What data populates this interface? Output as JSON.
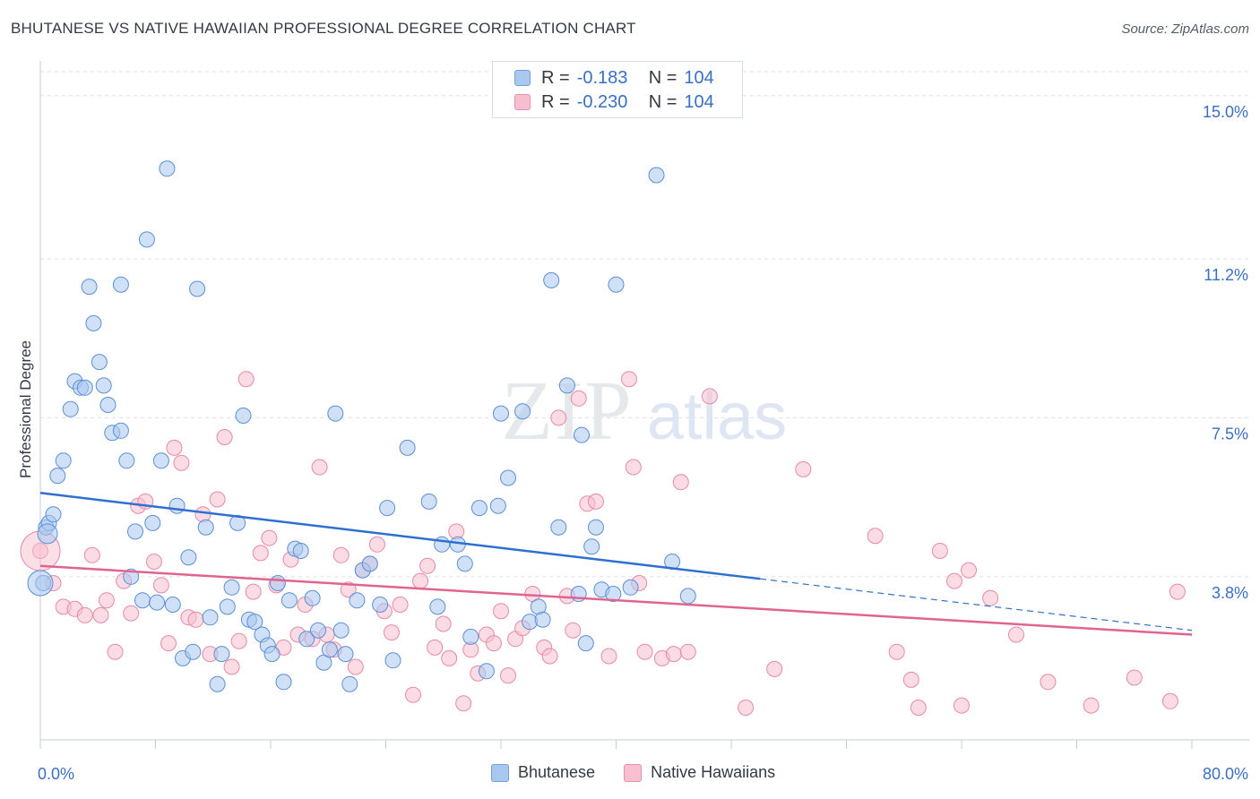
{
  "header": {
    "title": "BHUTANESE VS NATIVE HAWAIIAN PROFESSIONAL DEGREE CORRELATION CHART",
    "source": "Source: ZipAtlas.com"
  },
  "watermark": {
    "zip": "ZIP",
    "atlas": "atlas"
  },
  "legend": {
    "rows": [
      {
        "r_label": "R =",
        "r_value": "-0.183",
        "n_label": "N =",
        "n_value": "104",
        "color": "#a9c8f0",
        "border": "#6f9ed8"
      },
      {
        "r_label": "R =",
        "r_value": "-0.230",
        "n_label": "N =",
        "n_value": "104",
        "color": "#f7bfd0",
        "border": "#e790ad"
      }
    ]
  },
  "bottom_legend": [
    "Bhutanese",
    "Native Hawaiians"
  ],
  "colors": {
    "blue_fill": "#a9c8f0",
    "blue_stroke": "#5b8fd6",
    "blue_line": "#2f6fd0",
    "pink_fill": "#f7bfd0",
    "pink_stroke": "#e68aa8",
    "pink_line": "#e0648f",
    "tick_label": "#3a6fc4",
    "grid": "#dde1e6"
  },
  "chart_data": {
    "type": "scatter",
    "title": "BHUTANESE VS NATIVE HAWAIIAN PROFESSIONAL DEGREE CORRELATION CHART",
    "xlabel": "",
    "ylabel": "Professional Degree",
    "xlim": [
      0,
      80
    ],
    "ylim": [
      0,
      15.6
    ],
    "x_tick_labels": [
      {
        "value": 0,
        "label": "0.0%"
      },
      {
        "value": 80,
        "label": "80.0%"
      }
    ],
    "y_ticks": [
      {
        "value": 3.8,
        "label": "3.8%"
      },
      {
        "value": 7.5,
        "label": "7.5%"
      },
      {
        "value": 11.2,
        "label": "11.2%"
      },
      {
        "value": 15.0,
        "label": "15.0%"
      }
    ],
    "grid": true,
    "legend_position": "top-center",
    "series": [
      {
        "name": "Bhutanese",
        "r": -0.183,
        "n": 104,
        "trend": {
          "x0": 0,
          "y0": 5.75,
          "x1": 50,
          "y1": 3.75,
          "dashed_to_x": 80,
          "dashed_to_y": 2.55
        },
        "points": [
          [
            0.2,
            3.65
          ],
          [
            0.4,
            4.95
          ],
          [
            0.6,
            5.05
          ],
          [
            0.9,
            5.25
          ],
          [
            1.2,
            6.15
          ],
          [
            1.6,
            6.5
          ],
          [
            2.1,
            7.7
          ],
          [
            2.4,
            8.35
          ],
          [
            2.8,
            8.2
          ],
          [
            3.1,
            8.2
          ],
          [
            3.4,
            10.55
          ],
          [
            3.7,
            9.7
          ],
          [
            4.1,
            8.8
          ],
          [
            4.4,
            8.25
          ],
          [
            4.7,
            7.8
          ],
          [
            5.0,
            7.15
          ],
          [
            5.6,
            7.2
          ],
          [
            5.6,
            10.6
          ],
          [
            6.0,
            6.5
          ],
          [
            6.3,
            3.8
          ],
          [
            6.6,
            4.85
          ],
          [
            7.1,
            3.25
          ],
          [
            7.4,
            11.65
          ],
          [
            7.8,
            5.05
          ],
          [
            8.1,
            3.2
          ],
          [
            8.4,
            6.5
          ],
          [
            8.8,
            13.3
          ],
          [
            9.2,
            3.15
          ],
          [
            9.5,
            5.45
          ],
          [
            9.9,
            1.9
          ],
          [
            10.3,
            4.25
          ],
          [
            10.6,
            2.05
          ],
          [
            10.9,
            10.5
          ],
          [
            11.5,
            4.95
          ],
          [
            11.8,
            2.85
          ],
          [
            12.3,
            1.3
          ],
          [
            12.6,
            2.0
          ],
          [
            13.0,
            3.1
          ],
          [
            13.3,
            3.55
          ],
          [
            13.7,
            5.05
          ],
          [
            14.1,
            7.55
          ],
          [
            14.5,
            2.8
          ],
          [
            14.9,
            2.75
          ],
          [
            15.4,
            2.45
          ],
          [
            15.8,
            2.2
          ],
          [
            16.1,
            2.0
          ],
          [
            16.5,
            3.65
          ],
          [
            16.9,
            1.35
          ],
          [
            17.3,
            3.25
          ],
          [
            17.7,
            4.45
          ],
          [
            18.1,
            4.4
          ],
          [
            18.5,
            2.35
          ],
          [
            18.9,
            3.3
          ],
          [
            19.3,
            2.55
          ],
          [
            19.7,
            1.8
          ],
          [
            20.1,
            2.1
          ],
          [
            20.5,
            7.6
          ],
          [
            20.9,
            2.55
          ],
          [
            21.2,
            2.0
          ],
          [
            21.5,
            1.3
          ],
          [
            22.0,
            3.25
          ],
          [
            22.4,
            3.95
          ],
          [
            22.9,
            4.1
          ],
          [
            23.6,
            3.15
          ],
          [
            24.1,
            5.4
          ],
          [
            24.5,
            1.85
          ],
          [
            25.5,
            6.8
          ],
          [
            27.0,
            5.55
          ],
          [
            27.6,
            3.1
          ],
          [
            27.9,
            4.55
          ],
          [
            29.0,
            4.55
          ],
          [
            29.5,
            4.1
          ],
          [
            29.9,
            2.4
          ],
          [
            30.5,
            5.4
          ],
          [
            31.0,
            1.6
          ],
          [
            31.8,
            5.45
          ],
          [
            32.0,
            7.6
          ],
          [
            32.5,
            6.1
          ],
          [
            33.5,
            7.65
          ],
          [
            34.0,
            2.75
          ],
          [
            34.6,
            3.1
          ],
          [
            34.9,
            2.8
          ],
          [
            35.5,
            10.7
          ],
          [
            36.0,
            4.95
          ],
          [
            36.6,
            8.25
          ],
          [
            37.4,
            3.4
          ],
          [
            37.6,
            7.1
          ],
          [
            37.9,
            2.25
          ],
          [
            38.3,
            4.5
          ],
          [
            38.6,
            4.95
          ],
          [
            39.0,
            3.5
          ],
          [
            39.8,
            3.4
          ],
          [
            40.0,
            10.6
          ],
          [
            41.0,
            3.55
          ],
          [
            42.8,
            13.15
          ],
          [
            43.9,
            4.15
          ],
          [
            45.0,
            3.35
          ]
        ]
      },
      {
        "name": "Native Hawaiians",
        "r": -0.23,
        "n": 104,
        "trend": {
          "x0": 0,
          "y0": 4.05,
          "x1": 80,
          "y1": 2.45
        },
        "points": [
          [
            0.0,
            4.4
          ],
          [
            0.9,
            3.65
          ],
          [
            1.6,
            3.1
          ],
          [
            2.4,
            3.05
          ],
          [
            3.1,
            2.9
          ],
          [
            3.6,
            4.3
          ],
          [
            4.2,
            2.9
          ],
          [
            4.6,
            3.25
          ],
          [
            5.2,
            2.05
          ],
          [
            5.8,
            3.7
          ],
          [
            6.3,
            2.95
          ],
          [
            6.8,
            5.45
          ],
          [
            7.3,
            5.55
          ],
          [
            7.9,
            4.15
          ],
          [
            8.4,
            3.6
          ],
          [
            8.9,
            2.25
          ],
          [
            9.3,
            6.8
          ],
          [
            9.8,
            6.45
          ],
          [
            10.3,
            2.85
          ],
          [
            10.8,
            2.8
          ],
          [
            11.3,
            5.25
          ],
          [
            11.8,
            2.0
          ],
          [
            12.3,
            5.6
          ],
          [
            12.8,
            7.05
          ],
          [
            13.3,
            1.7
          ],
          [
            13.8,
            2.3
          ],
          [
            14.3,
            8.4
          ],
          [
            14.8,
            3.45
          ],
          [
            15.3,
            4.35
          ],
          [
            15.9,
            4.7
          ],
          [
            16.4,
            3.6
          ],
          [
            16.9,
            2.15
          ],
          [
            17.4,
            4.2
          ],
          [
            17.9,
            2.45
          ],
          [
            18.4,
            3.15
          ],
          [
            18.9,
            2.35
          ],
          [
            19.4,
            6.35
          ],
          [
            19.9,
            2.45
          ],
          [
            20.4,
            2.1
          ],
          [
            20.9,
            4.3
          ],
          [
            21.4,
            3.5
          ],
          [
            21.9,
            1.7
          ],
          [
            22.4,
            3.95
          ],
          [
            22.9,
            4.1
          ],
          [
            23.4,
            4.55
          ],
          [
            23.9,
            3.0
          ],
          [
            24.4,
            2.5
          ],
          [
            25.0,
            3.15
          ],
          [
            25.9,
            1.05
          ],
          [
            26.4,
            3.7
          ],
          [
            26.9,
            4.05
          ],
          [
            27.4,
            2.15
          ],
          [
            28.0,
            2.7
          ],
          [
            28.4,
            1.9
          ],
          [
            28.9,
            4.85
          ],
          [
            29.4,
            0.85
          ],
          [
            29.9,
            2.1
          ],
          [
            30.4,
            1.55
          ],
          [
            31.0,
            2.45
          ],
          [
            31.5,
            2.25
          ],
          [
            32.0,
            3.0
          ],
          [
            32.5,
            1.5
          ],
          [
            33.0,
            2.35
          ],
          [
            33.5,
            2.6
          ],
          [
            34.2,
            3.4
          ],
          [
            35.0,
            2.15
          ],
          [
            35.4,
            1.95
          ],
          [
            36.0,
            7.5
          ],
          [
            36.6,
            3.35
          ],
          [
            37.0,
            2.55
          ],
          [
            37.4,
            7.95
          ],
          [
            38.0,
            5.5
          ],
          [
            38.6,
            5.55
          ],
          [
            39.5,
            1.95
          ],
          [
            40.9,
            8.4
          ],
          [
            41.2,
            6.35
          ],
          [
            41.6,
            3.65
          ],
          [
            42.0,
            2.05
          ],
          [
            43.2,
            1.9
          ],
          [
            44.0,
            2.0
          ],
          [
            44.5,
            6.0
          ],
          [
            45.0,
            2.05
          ],
          [
            46.5,
            8.0
          ],
          [
            49.0,
            0.75
          ],
          [
            51.0,
            1.65
          ],
          [
            53.0,
            6.3
          ],
          [
            58.0,
            4.75
          ],
          [
            59.5,
            2.05
          ],
          [
            60.5,
            1.4
          ],
          [
            61.0,
            0.75
          ],
          [
            62.5,
            4.4
          ],
          [
            63.5,
            3.7
          ],
          [
            64.0,
            0.8
          ],
          [
            64.5,
            3.95
          ],
          [
            66.0,
            3.3
          ],
          [
            67.8,
            2.45
          ],
          [
            70.0,
            1.35
          ],
          [
            73.0,
            0.8
          ],
          [
            76.0,
            1.45
          ],
          [
            78.5,
            0.9
          ],
          [
            79.0,
            3.45
          ]
        ]
      }
    ]
  }
}
